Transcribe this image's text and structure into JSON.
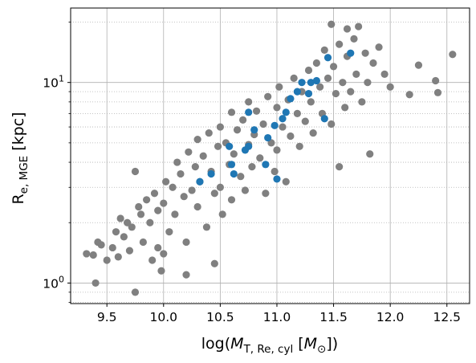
{
  "chart_data": {
    "type": "scatter",
    "title": "",
    "xlabel": {
      "main": "log(",
      "var": "M",
      "var_sub": "T, Re, cyl",
      "unit_open": " [",
      "unit_var": "M",
      "unit_sub": "⊙",
      "unit_close": "])"
    },
    "ylabel": {
      "main": "R",
      "sub": "e, MGE",
      "unit": " [kpc]"
    },
    "x_scale": "linear",
    "y_scale": "log",
    "xlim": [
      9.18,
      12.7
    ],
    "ylim": [
      0.79,
      23.5
    ],
    "x_ticks": [
      9.5,
      10.0,
      10.5,
      11.0,
      11.5,
      12.0,
      12.5
    ],
    "x_tick_labels": [
      "9.5",
      "10.0",
      "10.5",
      "11.0",
      "11.5",
      "12.0",
      "12.5"
    ],
    "y_major_ticks": [
      1,
      10
    ],
    "y_major_tick_labels": [
      "10",
      "10"
    ],
    "y_major_tick_exponents": [
      "0",
      "1"
    ],
    "y_minor_ticks": [
      0.8,
      0.9,
      2,
      3,
      4,
      5,
      6,
      7,
      8,
      9,
      20
    ],
    "grid": {
      "major": "solid",
      "minor": "dotted"
    },
    "series": [
      {
        "color": "#808080",
        "values": [
          [
            9.32,
            1.4
          ],
          [
            9.38,
            1.38
          ],
          [
            9.4,
            1.0
          ],
          [
            9.42,
            1.6
          ],
          [
            9.45,
            1.55
          ],
          [
            9.5,
            1.3
          ],
          [
            9.55,
            1.5
          ],
          [
            9.58,
            1.8
          ],
          [
            9.6,
            1.35
          ],
          [
            9.62,
            2.1
          ],
          [
            9.65,
            1.7
          ],
          [
            9.68,
            2.0
          ],
          [
            9.7,
            1.45
          ],
          [
            9.72,
            1.9
          ],
          [
            9.75,
            3.6
          ],
          [
            9.75,
            0.9
          ],
          [
            9.78,
            2.4
          ],
          [
            9.8,
            2.2
          ],
          [
            9.82,
            1.6
          ],
          [
            9.85,
            2.6
          ],
          [
            9.88,
            2.0
          ],
          [
            9.9,
            1.3
          ],
          [
            9.92,
            2.8
          ],
          [
            9.95,
            1.5
          ],
          [
            9.95,
            2.3
          ],
          [
            9.98,
            1.15
          ],
          [
            10.0,
            2.5
          ],
          [
            10.02,
            3.2
          ],
          [
            10.05,
            1.8
          ],
          [
            10.08,
            3.0
          ],
          [
            10.1,
            2.2
          ],
          [
            10.12,
            4.0
          ],
          [
            10.15,
            3.5
          ],
          [
            10.18,
            2.7
          ],
          [
            10.2,
            1.6
          ],
          [
            10.22,
            4.5
          ],
          [
            10.25,
            2.9
          ],
          [
            10.28,
            3.8
          ],
          [
            10.3,
            2.4
          ],
          [
            10.3,
            5.2
          ],
          [
            10.32,
            3.2
          ],
          [
            10.35,
            4.3
          ],
          [
            10.38,
            1.9
          ],
          [
            10.4,
            5.6
          ],
          [
            10.42,
            3.6
          ],
          [
            10.45,
            2.8
          ],
          [
            10.48,
            4.8
          ],
          [
            10.5,
            6.0
          ],
          [
            10.5,
            3.0
          ],
          [
            10.52,
            2.2
          ],
          [
            10.55,
            5.0
          ],
          [
            10.58,
            3.9
          ],
          [
            10.6,
            7.1
          ],
          [
            10.6,
            2.6
          ],
          [
            10.62,
            4.4
          ],
          [
            10.65,
            5.8
          ],
          [
            10.68,
            3.4
          ],
          [
            10.7,
            6.5
          ],
          [
            10.72,
            2.9
          ],
          [
            10.75,
            8.0
          ],
          [
            10.75,
            4.9
          ],
          [
            10.78,
            3.8
          ],
          [
            10.8,
            5.5
          ],
          [
            10.82,
            7.2
          ],
          [
            10.85,
            4.2
          ],
          [
            10.88,
            6.2
          ],
          [
            10.9,
            2.8
          ],
          [
            10.92,
            8.5
          ],
          [
            10.95,
            5.0
          ],
          [
            10.98,
            3.6
          ],
          [
            11.0,
            7.5
          ],
          [
            11.0,
            4.6
          ],
          [
            11.02,
            9.5
          ],
          [
            11.05,
            6.0
          ],
          [
            11.08,
            3.2
          ],
          [
            11.1,
            8.2
          ],
          [
            11.12,
            5.4
          ],
          [
            11.15,
            10.5
          ],
          [
            11.18,
            7.0
          ],
          [
            11.2,
            4.8
          ],
          [
            11.22,
            9.0
          ],
          [
            11.25,
            6.4
          ],
          [
            11.28,
            11.5
          ],
          [
            11.3,
            8.0
          ],
          [
            11.32,
            5.6
          ],
          [
            11.35,
            12.5
          ],
          [
            11.38,
            9.5
          ],
          [
            11.4,
            7.0
          ],
          [
            11.42,
            14.5
          ],
          [
            11.45,
            10.5
          ],
          [
            11.48,
            6.2
          ],
          [
            11.5,
            12.0
          ],
          [
            11.52,
            8.8
          ],
          [
            11.55,
            15.5
          ],
          [
            11.58,
            10.0
          ],
          [
            11.6,
            7.5
          ],
          [
            11.62,
            13.5
          ],
          [
            11.65,
            9.0
          ],
          [
            11.68,
            16.5
          ],
          [
            11.7,
            11.0
          ],
          [
            11.72,
            19.0
          ],
          [
            11.75,
            8.0
          ],
          [
            11.78,
            14.0
          ],
          [
            11.8,
            10.0
          ],
          [
            11.82,
            4.4
          ],
          [
            11.85,
            12.5
          ],
          [
            11.9,
            15.0
          ],
          [
            11.95,
            11.0
          ],
          [
            12.0,
            9.5
          ],
          [
            12.17,
            8.7
          ],
          [
            12.25,
            12.2
          ],
          [
            12.4,
            10.2
          ],
          [
            12.42,
            8.9
          ],
          [
            12.55,
            13.8
          ],
          [
            11.48,
            19.5
          ],
          [
            11.62,
            18.5
          ],
          [
            11.55,
            3.8
          ],
          [
            10.45,
            1.25
          ],
          [
            10.2,
            1.1
          ],
          [
            10.0,
            1.4
          ]
        ]
      },
      {
        "color": "#1f77b4",
        "values": [
          [
            10.32,
            3.2
          ],
          [
            10.42,
            3.5
          ],
          [
            10.58,
            4.8
          ],
          [
            10.6,
            3.9
          ],
          [
            10.62,
            3.5
          ],
          [
            10.72,
            4.6
          ],
          [
            10.75,
            4.8
          ],
          [
            10.75,
            7.1
          ],
          [
            10.8,
            5.8
          ],
          [
            10.9,
            3.9
          ],
          [
            10.92,
            5.3
          ],
          [
            10.98,
            6.1
          ],
          [
            11.0,
            3.3
          ],
          [
            11.05,
            6.6
          ],
          [
            11.08,
            7.1
          ],
          [
            11.12,
            8.3
          ],
          [
            11.18,
            9.0
          ],
          [
            11.22,
            10.0
          ],
          [
            11.28,
            8.8
          ],
          [
            11.3,
            10.0
          ],
          [
            11.35,
            10.2
          ],
          [
            11.42,
            6.6
          ],
          [
            11.45,
            13.3
          ],
          [
            11.65,
            14.0
          ]
        ]
      }
    ]
  }
}
